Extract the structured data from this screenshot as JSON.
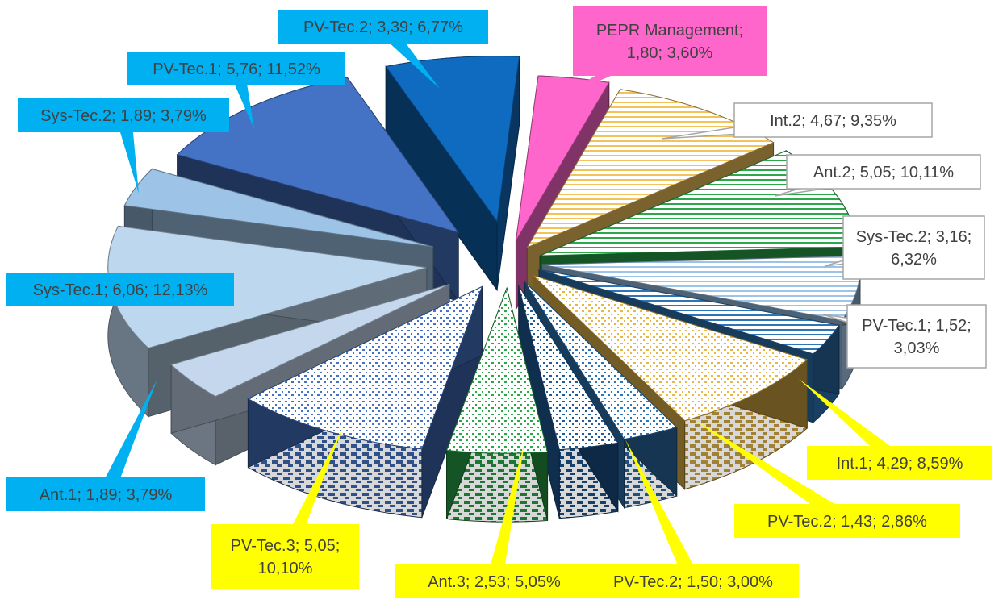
{
  "chart_data": {
    "type": "pie",
    "style": "3d-exploded",
    "title": "",
    "slices": [
      {
        "label": "PEPR Management",
        "value": 1.8,
        "percent": "3,60%",
        "text": "PEPR Management; 1,80; 3,60%",
        "color": "#FF66CC",
        "pattern": "solid",
        "label_style": "pink"
      },
      {
        "label": "Int.2",
        "value": 4.67,
        "percent": "9,35%",
        "text": "Int.2; 4,67; 9,35%",
        "color": "#F2C35B",
        "pattern": "stripes",
        "label_style": "white"
      },
      {
        "label": "Ant.2",
        "value": 5.05,
        "percent": "10,11%",
        "text": "Ant.2; 5,05; 10,11%",
        "color": "#2AA84A",
        "pattern": "stripes",
        "label_style": "white"
      },
      {
        "label": "Sys-Tec.2",
        "value": 3.16,
        "percent": "6,32%",
        "text": "Sys-Tec.2; 3,16; 6,32%",
        "color": "#9DC3E6",
        "pattern": "stripes",
        "label_style": "white"
      },
      {
        "label": "PV-Tec.1",
        "value": 1.52,
        "percent": "3,03%",
        "text": "PV-Tec.1; 1,52; 3,03%",
        "color": "#2E75B6",
        "pattern": "stripes",
        "label_style": "white"
      },
      {
        "label": "Int.1",
        "value": 4.29,
        "percent": "8,59%",
        "text": "Int.1; 4,29; 8,59%",
        "color": "#E6B84A",
        "pattern": "dots",
        "label_style": "yellow"
      },
      {
        "label": "PV-Tec.2",
        "value": 1.43,
        "percent": "2,86%",
        "text": "PV-Tec.2; 1,43; 2,86%",
        "color": "#2E75B6",
        "pattern": "dots",
        "label_style": "yellow"
      },
      {
        "label": "PV-Tec.2",
        "value": 1.5,
        "percent": "3,00%",
        "text": "PV-Tec.2; 1,50; 3,00%",
        "color": "#1F5C99",
        "pattern": "dots",
        "label_style": "yellow"
      },
      {
        "label": "Ant.3",
        "value": 2.53,
        "percent": "5,05%",
        "text": "Ant.3; 2,53; 5,05%",
        "color": "#2AA84A",
        "pattern": "dots",
        "label_style": "yellow"
      },
      {
        "label": "PV-Tec.3",
        "value": 5.05,
        "percent": "10,10%",
        "text": "PV-Tec.3; 5,05; 10,10%",
        "color": "#4472C4",
        "pattern": "dots",
        "label_style": "yellow"
      },
      {
        "label": "Ant.1",
        "value": 1.89,
        "percent": "3,79%",
        "text": "Ant.1; 1,89; 3,79%",
        "color": "#C5D7EC",
        "pattern": "solid",
        "label_style": "blue"
      },
      {
        "label": "Sys-Tec.1",
        "value": 6.06,
        "percent": "12,13%",
        "text": "Sys-Tec.1; 6,06; 12,13%",
        "color": "#BDD7EE",
        "pattern": "solid",
        "label_style": "blue"
      },
      {
        "label": "Sys-Tec.2",
        "value": 1.89,
        "percent": "3,79%",
        "text": "Sys-Tec.2; 1,89; 3,79%",
        "color": "#9DC3E6",
        "pattern": "solid",
        "label_style": "blue"
      },
      {
        "label": "PV-Tec.1",
        "value": 5.76,
        "percent": "11,52%",
        "text": "PV-Tec.1; 5,76; 11,52%",
        "color": "#4472C4",
        "pattern": "solid",
        "label_style": "blue"
      },
      {
        "label": "PV-Tec.2",
        "value": 3.39,
        "percent": "6,77%",
        "text": "PV-Tec.2; 3,39; 6,77%",
        "color": "#0F6BBF",
        "pattern": "solid",
        "label_style": "blue"
      }
    ],
    "label_colors": {
      "pink": "#FF66CC",
      "white": "#FFFFFF",
      "yellow": "#FFFF00",
      "blue": "#00B0F0"
    },
    "legend": "none"
  }
}
